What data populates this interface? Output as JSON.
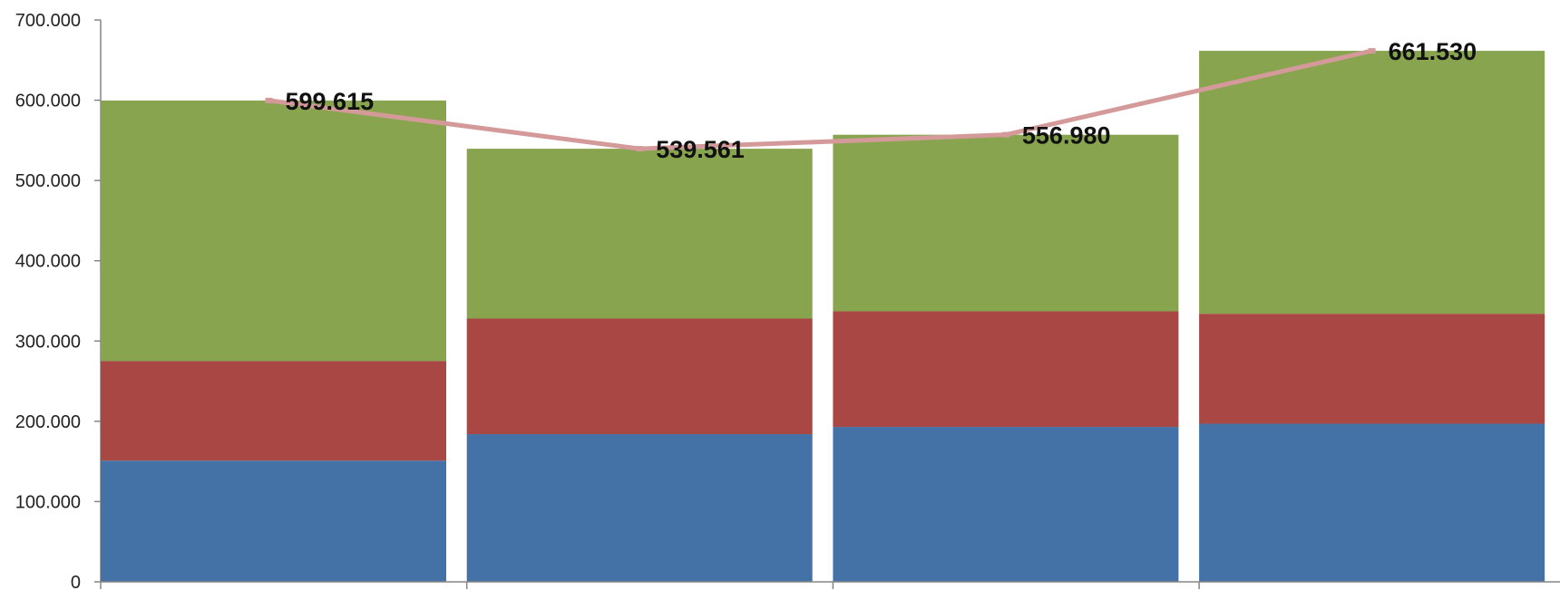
{
  "chart_data": {
    "type": "bar",
    "stacked": true,
    "categories": [
      "",
      "",
      "",
      ""
    ],
    "series": [
      {
        "color": "#4472a6",
        "values": [
          151000,
          184000,
          193000,
          197000
        ]
      },
      {
        "color": "#a84744",
        "values": [
          124000,
          144000,
          144000,
          137000
        ]
      },
      {
        "color": "#88a44f",
        "values": [
          324615,
          211561,
          219980,
          327530
        ]
      }
    ],
    "totals_line": {
      "color": "#d49a9a",
      "values": [
        599615,
        539561,
        556980,
        661530
      ],
      "labels": [
        "599.615",
        "539.561",
        "556.980",
        "661.530"
      ]
    },
    "y_ticks": [
      {
        "value": 0,
        "label": "0"
      },
      {
        "value": 100000,
        "label": "100.000"
      },
      {
        "value": 200000,
        "label": "200.000"
      },
      {
        "value": 300000,
        "label": "300.000"
      },
      {
        "value": 400000,
        "label": "400.000"
      },
      {
        "value": 500000,
        "label": "500.000"
      },
      {
        "value": 600000,
        "label": "600.000"
      },
      {
        "value": 700000,
        "label": "700.000"
      }
    ],
    "ylim": [
      0,
      700000
    ],
    "grid": false,
    "legend": "none",
    "axis_color": "#868686"
  }
}
